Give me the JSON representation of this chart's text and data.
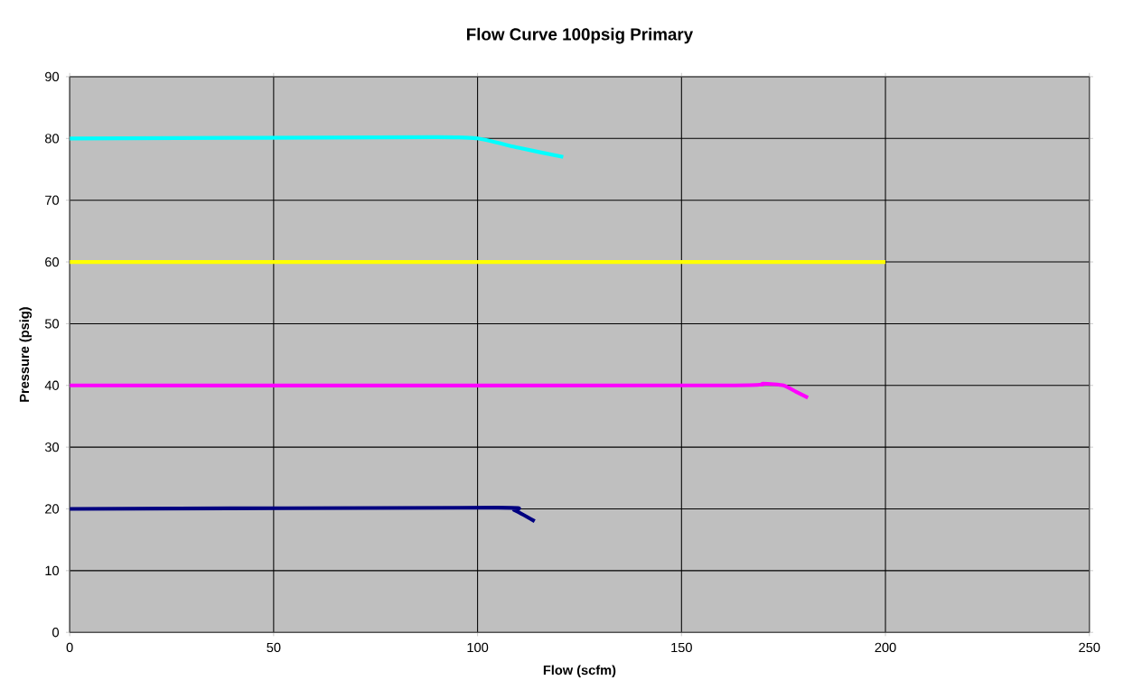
{
  "chart_data": {
    "type": "line",
    "title": "Flow Curve 100psig Primary",
    "xlabel": "Flow (scfm)",
    "ylabel": "Pressure (psig)",
    "xlim": [
      0,
      250
    ],
    "xticks": [
      0,
      50,
      100,
      150,
      200,
      250
    ],
    "ylim": [
      0,
      90
    ],
    "yticks": [
      0,
      10,
      20,
      30,
      40,
      50,
      60,
      70,
      80,
      90
    ],
    "grid": true,
    "marker": "none",
    "line_style": "solid",
    "series": [
      {
        "color": "#00ffff",
        "x": [
          0,
          90,
          100,
          110,
          121
        ],
        "values": [
          80,
          80.2,
          80,
          78.5,
          77
        ]
      },
      {
        "color": "#ffff00",
        "x": [
          0,
          200
        ],
        "values": [
          60,
          60
        ]
      },
      {
        "color": "#ff00ff",
        "x": [
          0,
          160,
          170,
          175,
          178,
          181
        ],
        "values": [
          40,
          40,
          40.3,
          40,
          39,
          38
        ]
      },
      {
        "color": "#000080",
        "x": [
          0,
          105,
          109,
          114
        ],
        "values": [
          20,
          20.2,
          19.8,
          18
        ]
      }
    ]
  }
}
